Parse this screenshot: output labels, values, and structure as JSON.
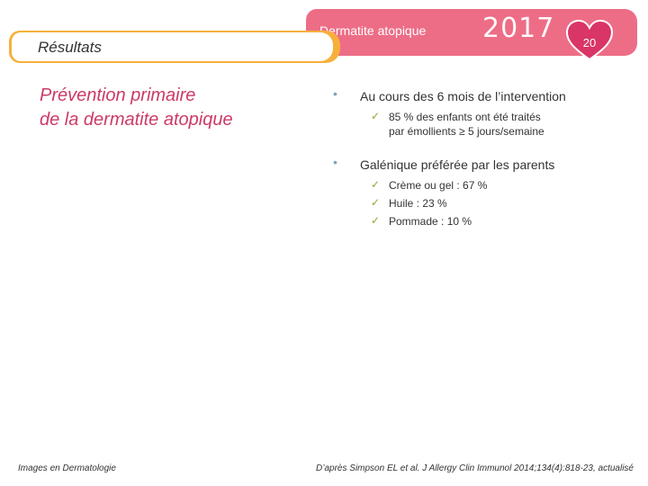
{
  "header": {
    "title": "Dermatite atopique",
    "year": "2017",
    "slide_number": "20",
    "bar_color": "#ed6d86"
  },
  "section": {
    "label": "Résultats",
    "tab_color": "#f7b03b"
  },
  "slide_title_lines": [
    "Prévention primaire",
    "de la dermatite atopique"
  ],
  "bullets": [
    {
      "text": "Au cours des 6 mois de l’intervention",
      "sub_items": [
        [
          "85 % des enfants ont été traités",
          "par émollients ≥ 5 jours/semaine"
        ]
      ]
    },
    {
      "text": "Galénique préférée par les parents",
      "sub_items": [
        [
          "Crème ou gel : 67 %"
        ],
        [
          "Huile : 23 %"
        ],
        [
          "Pommade : 10 %"
        ]
      ]
    }
  ],
  "footer": {
    "left": "Images en Dermatologie",
    "right": "D’après Simpson EL et al. J Allergy Clin Immunol 2014;134(4):818-23, actualisé"
  },
  "icons": {
    "bullet": "round-bullet-icon",
    "check": "checkmark-icon",
    "badge": "heart-icon"
  }
}
